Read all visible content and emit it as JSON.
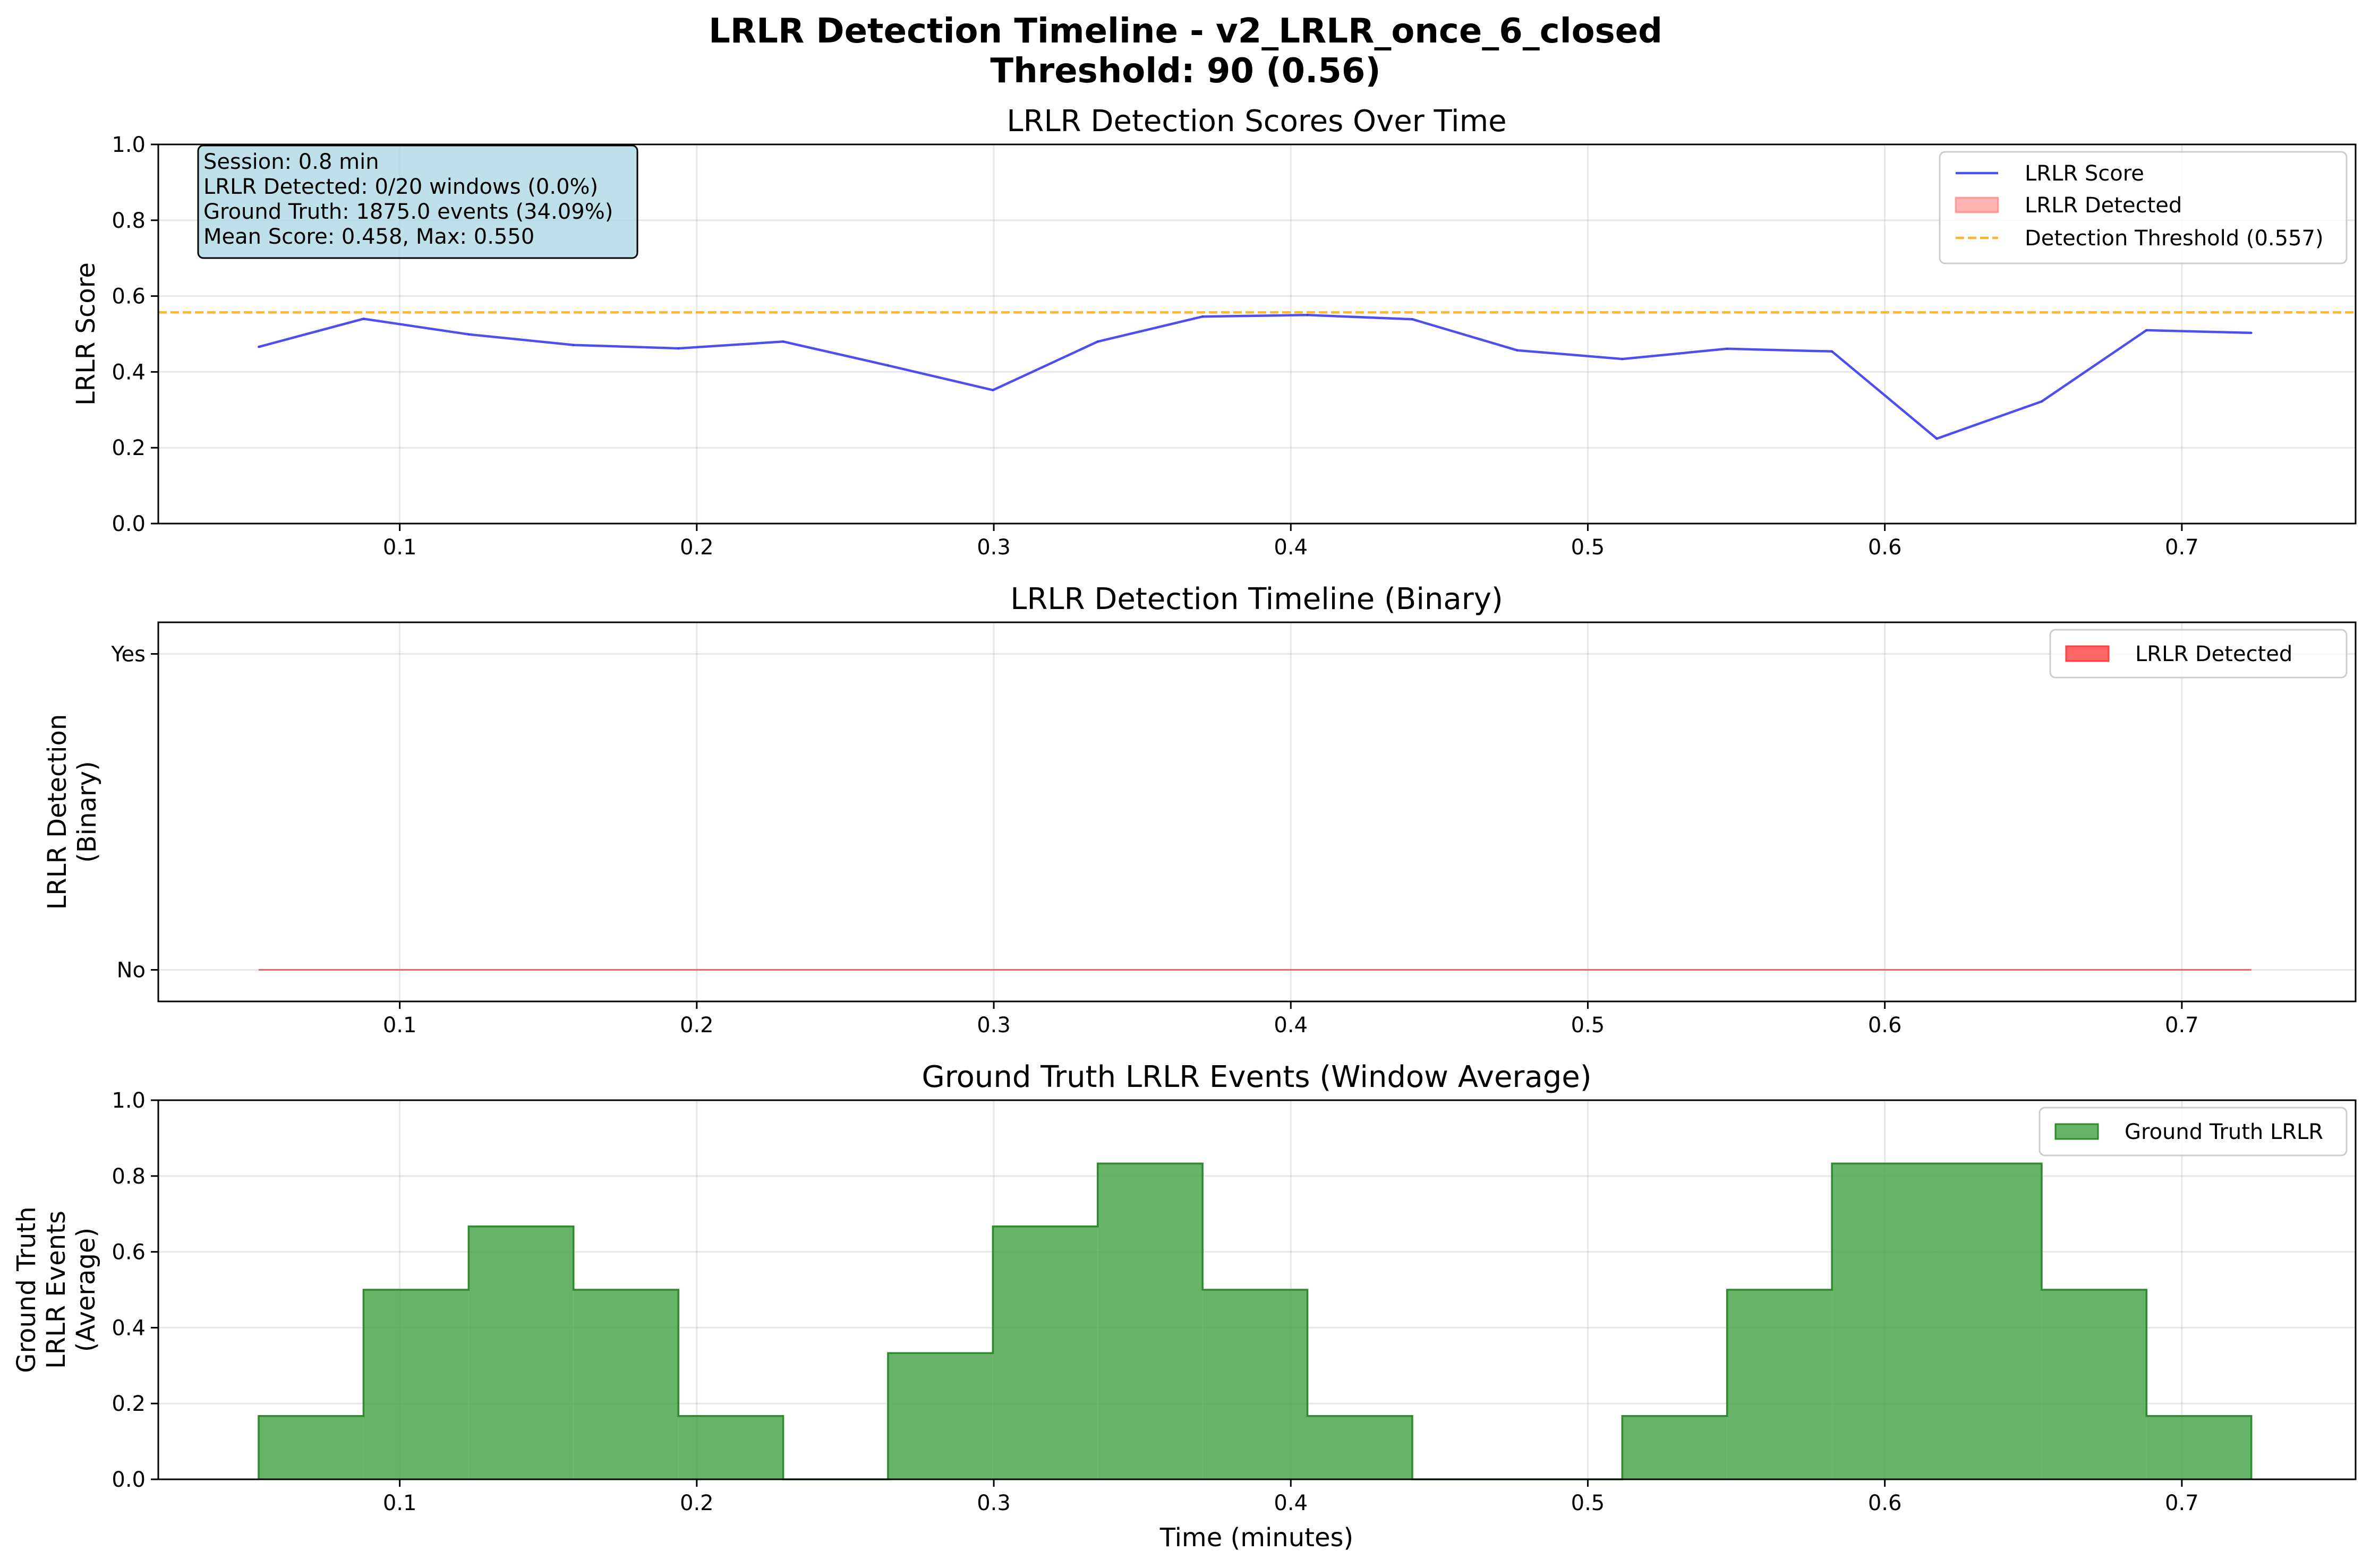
{
  "figure": {
    "title_line1": "LRLR Detection Timeline - v2_LRLR_once_6_closed",
    "title_line2": "Threshold: 90 (0.56)"
  },
  "info_box": {
    "lines": [
      "Session: 0.8 min",
      "LRLR Detected: 0/20 windows (0.0%)",
      "Ground Truth: 1875.0 events (34.09%)",
      "Mean Score: 0.458, Max: 0.550"
    ]
  },
  "colors": {
    "score_line": "#3b3bf0",
    "threshold": "#ffa500",
    "detected": "#ff4040",
    "ground_truth": "#4ca64c",
    "info_box_bg": "#add8e6"
  },
  "chart_data": [
    {
      "type": "line",
      "title": "LRLR Detection Scores Over Time",
      "xlabel": "",
      "ylabel": "LRLR Score",
      "xlim": [
        0.0187,
        0.7585
      ],
      "ylim": [
        0,
        1
      ],
      "xticks": [
        "0.1",
        "0.2",
        "0.3",
        "0.4",
        "0.5",
        "0.6",
        "0.7"
      ],
      "yticks": [
        "0.0",
        "0.2",
        "0.4",
        "0.6",
        "0.8",
        "1.0"
      ],
      "grid": true,
      "legend_position": "top-right",
      "legend": [
        "LRLR Score",
        "LRLR Detected",
        "Detection Threshold (0.557)"
      ],
      "threshold": 0.557,
      "x": [
        0.0525,
        0.0878,
        0.1232,
        0.1585,
        0.1938,
        0.2291,
        0.2644,
        0.2997,
        0.335,
        0.3703,
        0.4056,
        0.4409,
        0.4762,
        0.5116,
        0.5469,
        0.5822,
        0.6175,
        0.6528,
        0.6881,
        0.7234
      ],
      "series": [
        {
          "name": "LRLR Score",
          "values": [
            0.466,
            0.54,
            0.499,
            0.471,
            0.462,
            0.48,
            0.417,
            0.352,
            0.48,
            0.546,
            0.55,
            0.539,
            0.457,
            0.434,
            0.461,
            0.454,
            0.224,
            0.322,
            0.51,
            0.503
          ]
        }
      ]
    },
    {
      "type": "area",
      "title": "LRLR Detection Timeline (Binary)",
      "xlabel": "",
      "ylabel_line1": "LRLR Detection",
      "ylabel_line2": "(Binary)",
      "xlim": [
        0.0187,
        0.7585
      ],
      "ylim": [
        -0.1,
        1.1
      ],
      "xticks": [
        "0.1",
        "0.2",
        "0.3",
        "0.4",
        "0.5",
        "0.6",
        "0.7"
      ],
      "yticks": [
        "No",
        "Yes"
      ],
      "grid": true,
      "legend_position": "top-right",
      "legend": [
        "LRLR Detected"
      ],
      "x_start": 0.0525,
      "x_end": 0.7234,
      "values": [
        0,
        0,
        0,
        0,
        0,
        0,
        0,
        0,
        0,
        0,
        0,
        0,
        0,
        0,
        0,
        0,
        0,
        0,
        0,
        0
      ]
    },
    {
      "type": "area",
      "title": "Ground Truth LRLR Events (Window Average)",
      "xlabel": "Time (minutes)",
      "ylabel_line1": "Ground Truth",
      "ylabel_line2": "LRLR Events",
      "ylabel_line3": "(Average)",
      "xlim": [
        0.0187,
        0.7585
      ],
      "ylim": [
        0,
        1
      ],
      "xticks": [
        "0.1",
        "0.2",
        "0.3",
        "0.4",
        "0.5",
        "0.6",
        "0.7"
      ],
      "yticks": [
        "0.0",
        "0.2",
        "0.4",
        "0.6",
        "0.8",
        "1.0"
      ],
      "grid": true,
      "legend_position": "top-right",
      "legend": [
        "Ground Truth LRLR"
      ],
      "x": [
        0.0525,
        0.0878,
        0.1232,
        0.1585,
        0.1938,
        0.2291,
        0.2644,
        0.2997,
        0.335,
        0.3703,
        0.4056,
        0.4409,
        0.4762,
        0.5116,
        0.5469,
        0.5822,
        0.6175,
        0.6528,
        0.6881,
        0.7234
      ],
      "values": [
        0.167,
        0.5,
        0.667,
        0.5,
        0.167,
        0.0,
        0.333,
        0.667,
        0.833,
        0.5,
        0.167,
        0.0,
        0.0,
        0.167,
        0.5,
        0.833,
        0.833,
        0.5,
        0.167,
        0.167
      ]
    }
  ]
}
